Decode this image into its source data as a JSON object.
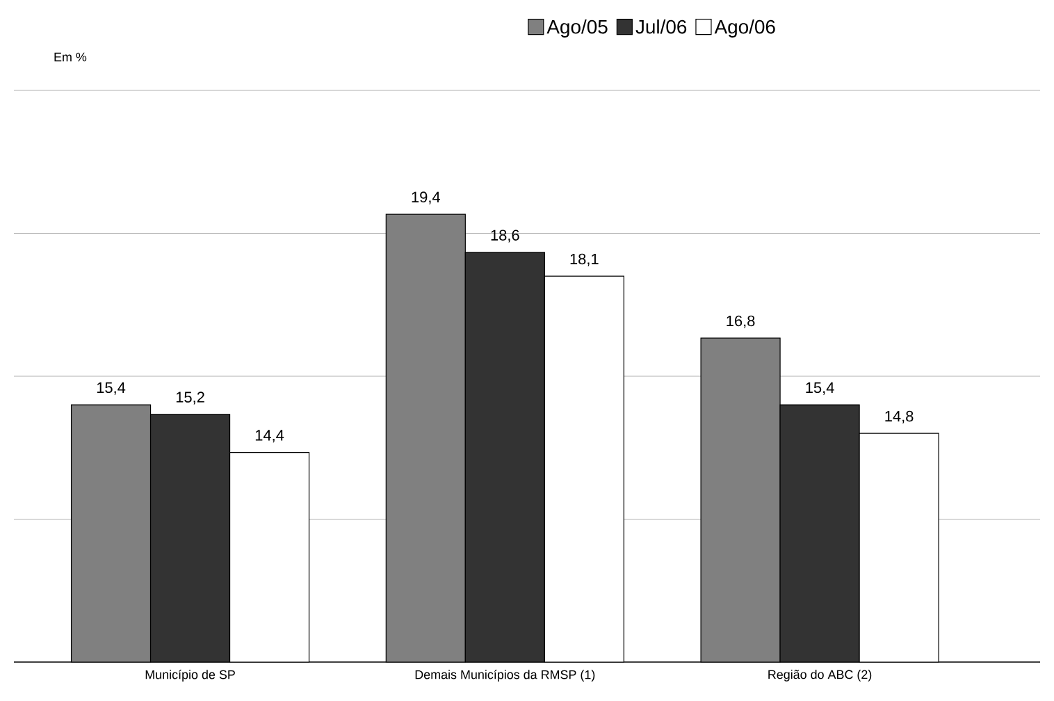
{
  "chart_data": {
    "type": "bar",
    "annotations": [
      "Em %"
    ],
    "categories": [
      "Município de SP",
      "Demais Municípios da RMSP (1)",
      "Região do ABC (2)"
    ],
    "series": [
      {
        "name": "Ago/05",
        "color": "#808080",
        "values": [
          15.4,
          19.4,
          16.8
        ],
        "value_labels": [
          "15,4",
          "19,4",
          "16,8"
        ]
      },
      {
        "name": "Jul/06",
        "color": "#333333",
        "values": [
          15.2,
          18.6,
          15.4
        ],
        "value_labels": [
          "15,2",
          "18,6",
          "15,4"
        ]
      },
      {
        "name": "Ago/06",
        "color": "#ffffff",
        "values": [
          14.4,
          18.1,
          14.8
        ],
        "value_labels": [
          "14,4",
          "18,1",
          "14,8"
        ]
      }
    ],
    "ylim": [
      10,
      22
    ],
    "yticks": [
      {
        "value": 13,
        "label": null
      },
      {
        "value": 16,
        "label": null
      },
      {
        "value": 19,
        "label": null
      },
      {
        "value": 22,
        "label": null
      }
    ],
    "tick_labels": "x",
    "grid": "y",
    "legend": "top"
  }
}
